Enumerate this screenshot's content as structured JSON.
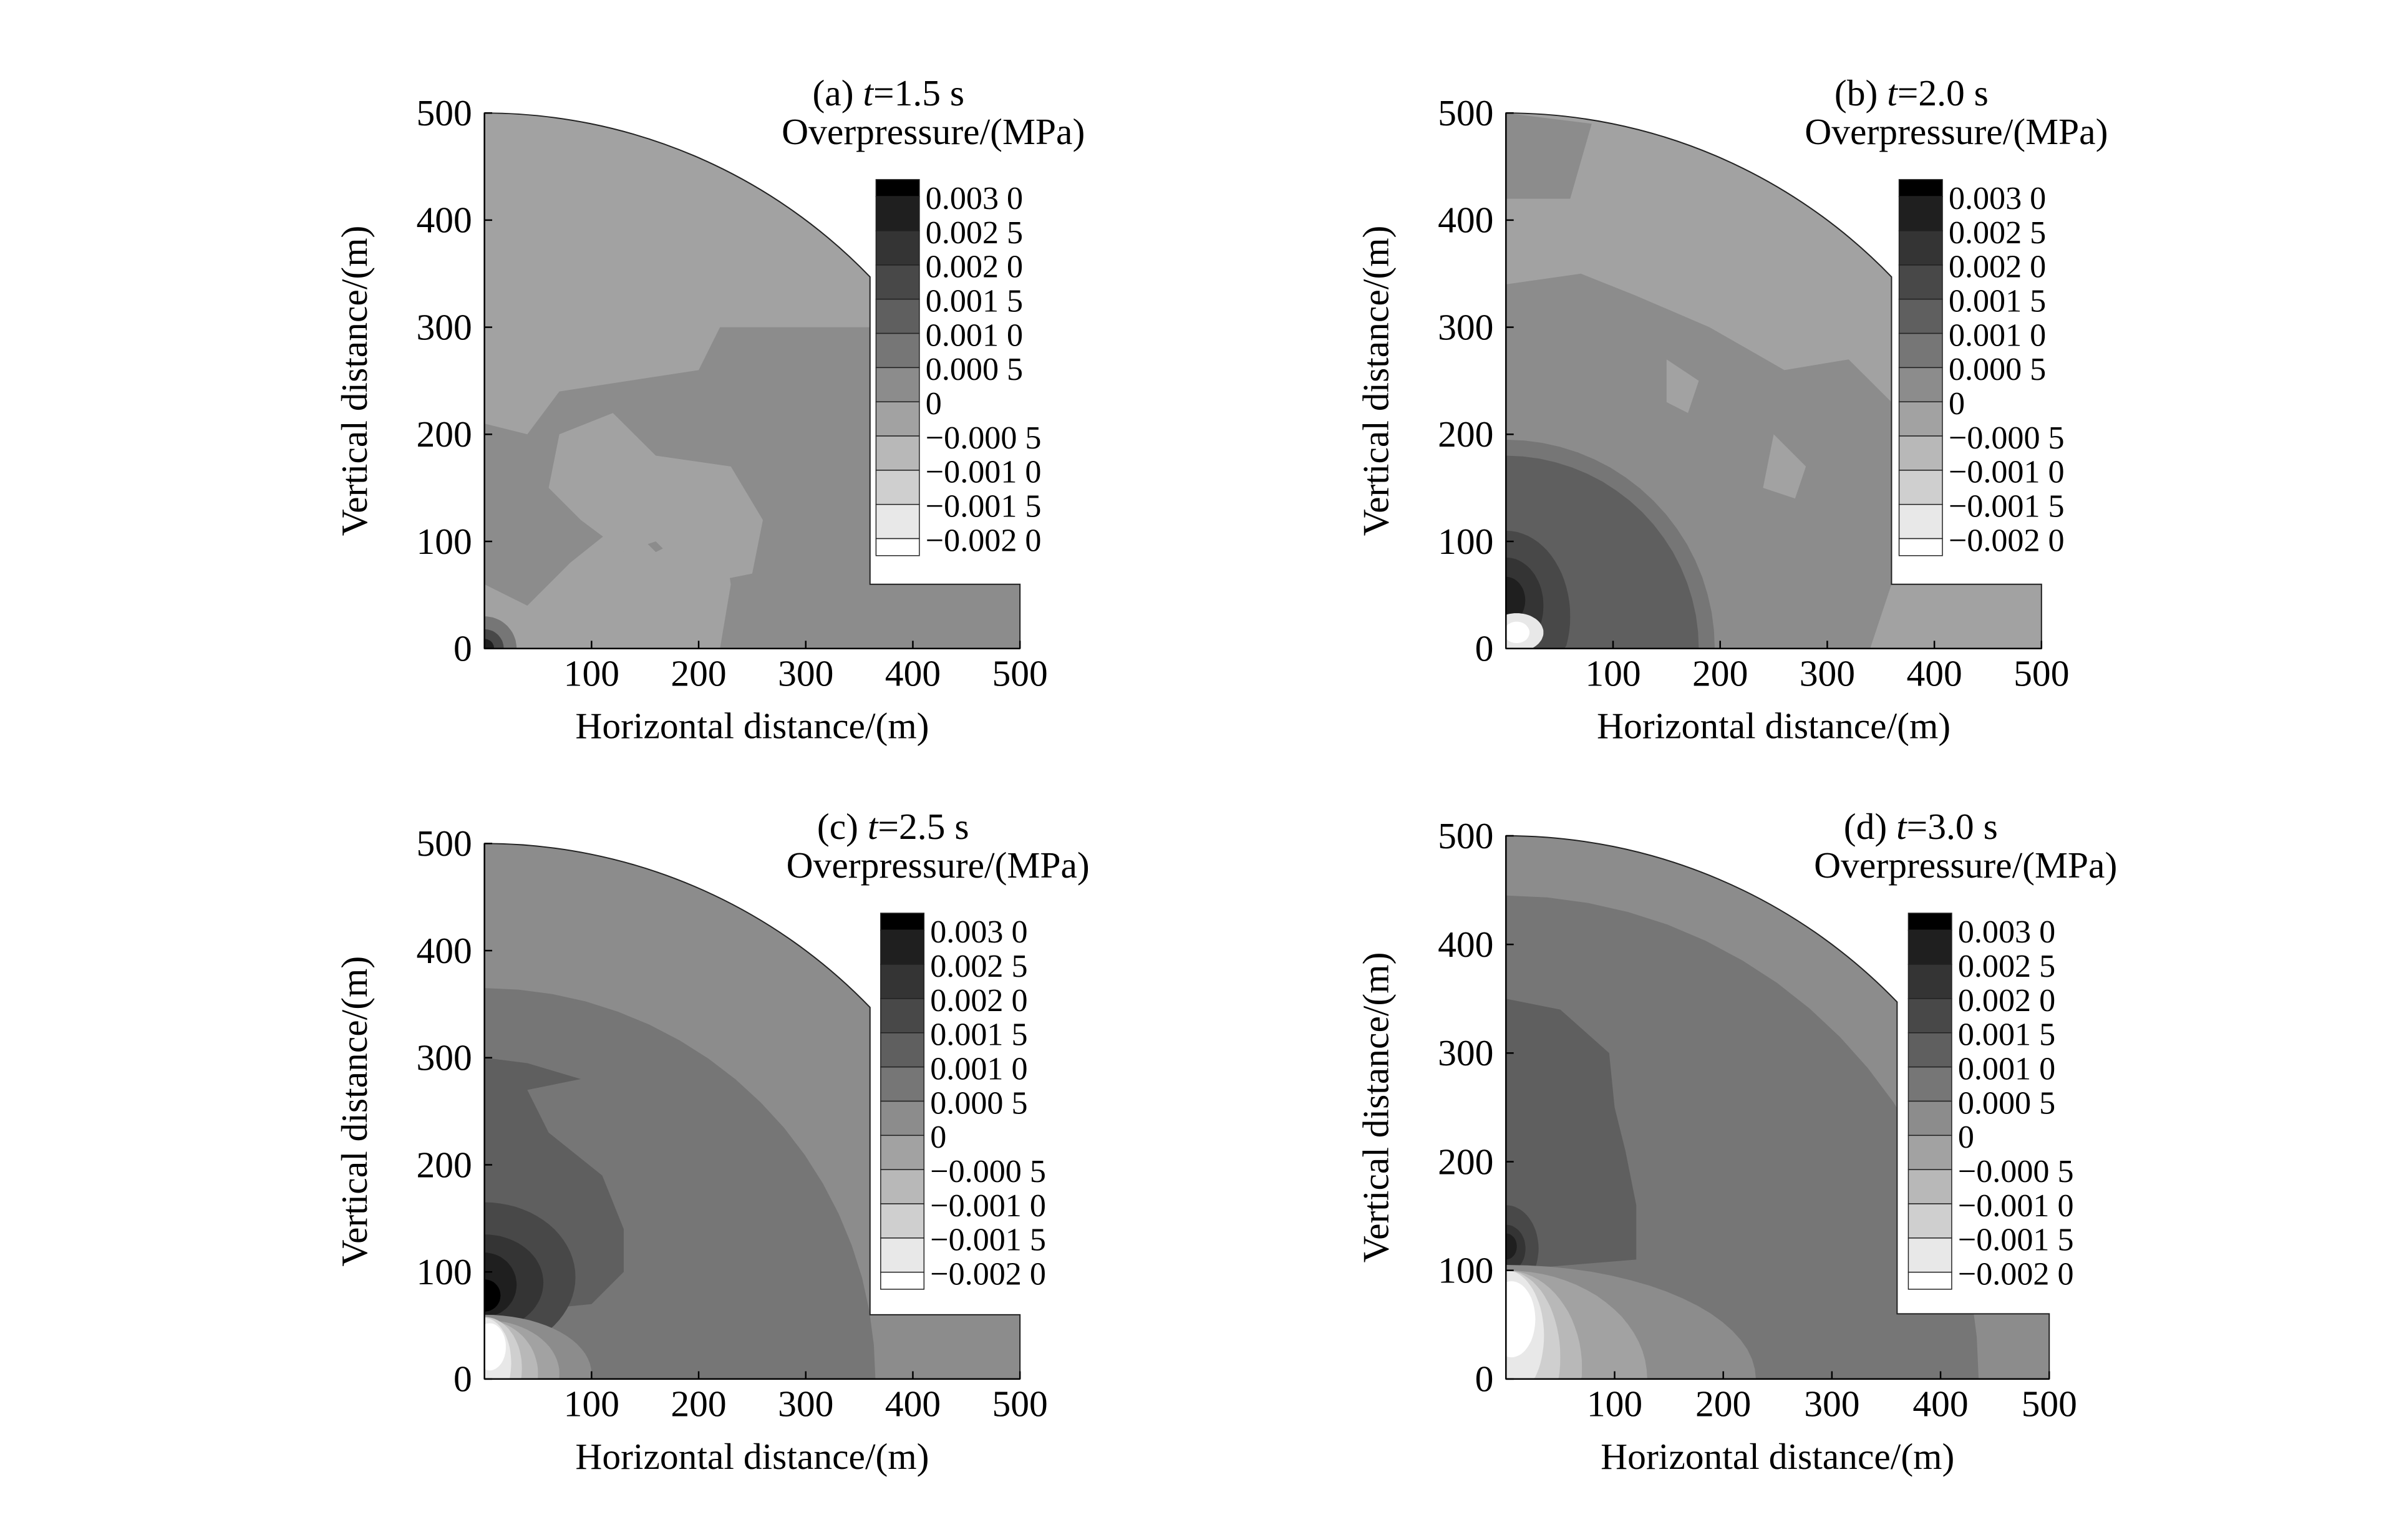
{
  "chart_data": [
    {
      "type": "heatmap",
      "panel": "a",
      "title_prefix": "(a) ",
      "title_var": "t",
      "title_rest": "=1.5 s",
      "colorbar_title": "Overpressure/(MPa)",
      "xlabel": "Horizontal distance/(m)",
      "ylabel": "Vertical distance/(m)",
      "xlim": [
        0,
        500
      ],
      "ylim": [
        0,
        500
      ],
      "xticks": [
        "100",
        "200",
        "300",
        "400",
        "500"
      ],
      "yticks": [
        "0",
        "100",
        "200",
        "300",
        "400",
        "500"
      ],
      "base_level": 7,
      "regions": [
        {
          "level": 6,
          "poly": [
            [
              220,
              0
            ],
            [
              500,
              0
            ],
            [
              500,
              60
            ],
            [
              360,
              60
            ],
            [
              360,
              300
            ],
            [
              220,
              300
            ],
            [
              200,
              260
            ],
            [
              70,
              240
            ],
            [
              40,
              200
            ],
            [
              0,
              210
            ],
            [
              0,
              60
            ],
            [
              40,
              40
            ],
            [
              80,
              80
            ],
            [
              130,
              120
            ],
            [
              160,
              90
            ],
            [
              220,
              120
            ],
            [
              230,
              60
            ]
          ]
        },
        {
          "level": 7,
          "poly": [
            [
              70,
              200
            ],
            [
              120,
              220
            ],
            [
              160,
              180
            ],
            [
              230,
              170
            ],
            [
              260,
              120
            ],
            [
              250,
              70
            ],
            [
              200,
              60
            ],
            [
              160,
              100
            ],
            [
              130,
              90
            ],
            [
              90,
              120
            ],
            [
              60,
              150
            ]
          ]
        },
        {
          "level": 5,
          "ellipse": [
            0,
            0,
            30,
            30
          ]
        },
        {
          "level": 3,
          "ellipse": [
            0,
            0,
            18,
            18
          ]
        },
        {
          "level": 1,
          "ellipse": [
            0,
            0,
            9,
            9
          ]
        }
      ]
    },
    {
      "type": "heatmap",
      "panel": "b",
      "title_prefix": "(b) ",
      "title_var": "t",
      "title_rest": "=2.0 s",
      "colorbar_title": "Overpressure/(MPa)",
      "xlabel": "Horizontal distance/(m)",
      "ylabel": "Vertical distance/(m)",
      "xlim": [
        0,
        500
      ],
      "ylim": [
        0,
        500
      ],
      "xticks": [
        "100",
        "200",
        "300",
        "400",
        "500"
      ],
      "yticks": [
        "0",
        "100",
        "200",
        "300",
        "400",
        "500"
      ],
      "base_level": 7,
      "regions": [
        {
          "level": 6,
          "poly": [
            [
              0,
              340
            ],
            [
              70,
              350
            ],
            [
              120,
              330
            ],
            [
              190,
              300
            ],
            [
              260,
              260
            ],
            [
              320,
              270
            ],
            [
              360,
              230
            ],
            [
              360,
              60
            ],
            [
              340,
              0
            ],
            [
              0,
              0
            ]
          ]
        },
        {
          "level": 6,
          "poly": [
            [
              0,
              500
            ],
            [
              80,
              490
            ],
            [
              60,
              420
            ],
            [
              0,
              420
            ]
          ]
        },
        {
          "level": 7,
          "poly": [
            [
              150,
              270
            ],
            [
              180,
              250
            ],
            [
              170,
              220
            ],
            [
              150,
              230
            ]
          ]
        },
        {
          "level": 7,
          "poly": [
            [
              250,
              200
            ],
            [
              280,
              170
            ],
            [
              270,
              140
            ],
            [
              240,
              150
            ]
          ]
        },
        {
          "level": 5,
          "ellipse": [
            0,
            0,
            195,
            195
          ]
        },
        {
          "level": 4,
          "ellipse": [
            0,
            0,
            180,
            180
          ]
        },
        {
          "level": 3,
          "ellipse": [
            0,
            30,
            60,
            80
          ]
        },
        {
          "level": 2,
          "ellipse": [
            0,
            40,
            35,
            45
          ]
        },
        {
          "level": 1,
          "ellipse": [
            0,
            45,
            18,
            22
          ]
        },
        {
          "level": 10,
          "ellipse": [
            10,
            15,
            25,
            18
          ]
        },
        {
          "level": 11,
          "ellipse": [
            10,
            15,
            12,
            10
          ]
        }
      ]
    },
    {
      "type": "heatmap",
      "panel": "c",
      "title_prefix": "(c) ",
      "title_var": "t",
      "title_rest": "=2.5 s",
      "colorbar_title": "Overpressure/(MPa)",
      "xlabel": "Horizontal distance/(m)",
      "ylabel": "Vertical distance/(m)",
      "xlim": [
        0,
        500
      ],
      "ylim": [
        0,
        500
      ],
      "xticks": [
        "100",
        "200",
        "300",
        "400",
        "500"
      ],
      "yticks": [
        "0",
        "100",
        "200",
        "300",
        "400",
        "500"
      ],
      "base_level": 6,
      "regions": [
        {
          "level": 5,
          "ellipse": [
            0,
            0,
            365,
            365
          ]
        },
        {
          "level": 4,
          "poly": [
            [
              0,
              300
            ],
            [
              40,
              295
            ],
            [
              90,
              280
            ],
            [
              40,
              270
            ],
            [
              60,
              230
            ],
            [
              110,
              190
            ],
            [
              130,
              140
            ],
            [
              130,
              100
            ],
            [
              100,
              70
            ],
            [
              0,
              60
            ]
          ]
        },
        {
          "level": 3,
          "ellipse": [
            0,
            95,
            85,
            70
          ]
        },
        {
          "level": 2,
          "ellipse": [
            0,
            90,
            55,
            45
          ]
        },
        {
          "level": 1,
          "ellipse": [
            0,
            88,
            30,
            30
          ]
        },
        {
          "level": 0,
          "ellipse": [
            0,
            78,
            15,
            15
          ]
        },
        {
          "level": 6,
          "ellipse": [
            0,
            5,
            100,
            55
          ]
        },
        {
          "level": 7,
          "ellipse": [
            0,
            5,
            70,
            50
          ]
        },
        {
          "level": 8,
          "ellipse": [
            0,
            5,
            50,
            50
          ]
        },
        {
          "level": 9,
          "ellipse": [
            0,
            10,
            35,
            48
          ]
        },
        {
          "level": 10,
          "ellipse": [
            0,
            15,
            25,
            42
          ]
        },
        {
          "level": 11,
          "ellipse": [
            5,
            30,
            15,
            22
          ]
        }
      ]
    },
    {
      "type": "heatmap",
      "panel": "d",
      "title_prefix": "(d) ",
      "title_var": "t",
      "title_rest": "=3.0 s",
      "colorbar_title": "Overpressure/(MPa)",
      "xlabel": "Horizontal distance/(m)",
      "ylabel": "Vertical distance/(m)",
      "xlim": [
        0,
        500
      ],
      "ylim": [
        0,
        500
      ],
      "xticks": [
        "100",
        "200",
        "300",
        "400",
        "500"
      ],
      "yticks": [
        "0",
        "100",
        "200",
        "300",
        "400",
        "500"
      ],
      "base_level": 6,
      "regions": [
        {
          "level": 5,
          "ellipse": [
            0,
            0,
            435,
            445
          ]
        },
        {
          "level": 4,
          "poly": [
            [
              0,
              350
            ],
            [
              50,
              340
            ],
            [
              95,
              300
            ],
            [
              100,
              250
            ],
            [
              110,
              210
            ],
            [
              120,
              160
            ],
            [
              120,
              110
            ],
            [
              0,
              100
            ]
          ]
        },
        {
          "level": 3,
          "ellipse": [
            0,
            120,
            30,
            40
          ]
        },
        {
          "level": 2,
          "ellipse": [
            0,
            120,
            18,
            22
          ]
        },
        {
          "level": 1,
          "ellipse": [
            0,
            122,
            10,
            12
          ]
        },
        {
          "level": 6,
          "ellipse": [
            0,
            0,
            230,
            105
          ]
        },
        {
          "level": 7,
          "ellipse": [
            0,
            0,
            130,
            100
          ]
        },
        {
          "level": 8,
          "ellipse": [
            0,
            10,
            70,
            90
          ]
        },
        {
          "level": 9,
          "ellipse": [
            0,
            20,
            50,
            80
          ]
        },
        {
          "level": 10,
          "ellipse": [
            0,
            40,
            35,
            60
          ]
        },
        {
          "level": 11,
          "ellipse": [
            5,
            55,
            22,
            35
          ]
        }
      ]
    }
  ],
  "legend": {
    "labels": [
      "0.003 0",
      "0.002 5",
      "0.002 0",
      "0.001 5",
      "0.001 0",
      "0.000 5",
      "0",
      "−0.000 5",
      "−0.001 0",
      "−0.001 5",
      "−0.002 0"
    ],
    "colors": [
      "#000000",
      "#1f1f1f",
      "#343434",
      "#484848",
      "#5f5f5f",
      "#767676",
      "#8c8c8c",
      "#a2a2a2",
      "#b8b8b8",
      "#cfcfcf",
      "#e8e8e8",
      "#ffffff"
    ]
  }
}
